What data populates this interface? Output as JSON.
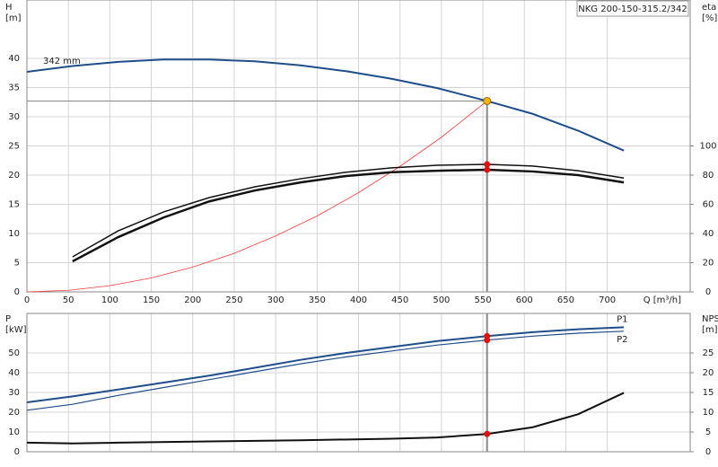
{
  "chart_data": [
    {
      "type": "line",
      "title": "NKG 200-150-315.2/342",
      "y_label": [
        "H",
        "[m]"
      ],
      "y2_label": [
        "eta",
        "[%]"
      ],
      "x_label": "Q [m³/h]",
      "xlim": [
        0,
        800
      ],
      "xticks": [
        0,
        50,
        100,
        150,
        200,
        250,
        300,
        350,
        400,
        450,
        500,
        550,
        600,
        650,
        700
      ],
      "ylim": [
        0,
        50
      ],
      "yticks": [
        0,
        5,
        10,
        15,
        20,
        25,
        30,
        35,
        40
      ],
      "y2lim": [
        0,
        200
      ],
      "y2ticks": [
        0,
        20,
        40,
        60,
        80,
        100
      ],
      "grid": true,
      "duty_point": {
        "x": 555,
        "y": 32.7,
        "color": "#f5b400"
      },
      "series": [
        {
          "name": "342 mm",
          "color": "#1f4e8c",
          "width": 2,
          "x": [
            0,
            55,
            110,
            165,
            220,
            275,
            330,
            385,
            440,
            495,
            555,
            610,
            665,
            720
          ],
          "values": [
            37.7,
            38.7,
            39.4,
            39.8,
            39.8,
            39.5,
            38.8,
            37.8,
            36.5,
            34.9,
            32.7,
            30.5,
            27.6,
            24.2
          ]
        },
        {
          "color": "#ff3b3b",
          "width": 0.8,
          "x": [
            0,
            50,
            100,
            150,
            200,
            250,
            300,
            350,
            400,
            450,
            500,
            555
          ],
          "values": [
            0,
            0.27,
            1.06,
            2.39,
            4.25,
            6.6,
            9.6,
            13.0,
            17.0,
            21.5,
            26.5,
            32.7
          ]
        },
        {
          "color": "#111111",
          "width": 1.5,
          "axis": "y2",
          "dot_color": "#e01010",
          "x": [
            55,
            110,
            165,
            220,
            275,
            330,
            385,
            440,
            495,
            555,
            610,
            665,
            720
          ],
          "values": [
            24,
            41.8,
            54.8,
            64.6,
            72,
            77.5,
            82,
            85,
            86.8,
            87.4,
            86.2,
            83,
            78
          ]
        },
        {
          "color": "#111111",
          "width": 2.5,
          "axis": "y2",
          "dot_color": "#e01010",
          "x": [
            55,
            110,
            165,
            220,
            275,
            330,
            385,
            440,
            495,
            555,
            610,
            665,
            720
          ],
          "values": [
            20.9,
            37.5,
            51,
            62,
            69.5,
            75,
            79.4,
            82,
            83,
            83.7,
            82.5,
            80,
            75
          ]
        }
      ]
    },
    {
      "type": "line",
      "y_label": [
        "P",
        "[kW]"
      ],
      "y2_label": [
        "NPSH",
        "[m]"
      ],
      "xlim": [
        0,
        800
      ],
      "xticks": [
        0,
        50,
        100,
        150,
        200,
        250,
        300,
        350,
        400,
        450,
        500,
        550,
        600,
        650,
        700
      ],
      "ylim": [
        0,
        70
      ],
      "yticks": [
        0,
        10,
        20,
        30,
        40,
        50
      ],
      "y2lim": [
        0,
        35
      ],
      "y2ticks": [
        0,
        5,
        10,
        15,
        20,
        25
      ],
      "grid": true,
      "series": [
        {
          "name": "P1",
          "color": "#1f4e8c",
          "width": 2,
          "dot_color": "#e01010",
          "x": [
            0,
            55,
            110,
            165,
            220,
            275,
            330,
            385,
            440,
            495,
            555,
            610,
            665,
            720
          ],
          "values": [
            25,
            28,
            31.5,
            35,
            38.5,
            42.5,
            46.5,
            50,
            53,
            56,
            58.5,
            60.5,
            62,
            63
          ]
        },
        {
          "name": "P2",
          "color": "#1f4e8c",
          "width": 1.2,
          "dot_color": "#e01010",
          "x": [
            0,
            55,
            110,
            165,
            220,
            275,
            330,
            385,
            440,
            495,
            555,
            610,
            665,
            720
          ],
          "values": [
            21,
            24,
            28.5,
            32.5,
            36.5,
            40.5,
            44.5,
            48,
            51,
            54,
            56.5,
            58.5,
            60,
            61
          ]
        },
        {
          "color": "#111111",
          "width": 2,
          "axis": "y2",
          "dot_color": "#e01010",
          "x": [
            0,
            55,
            110,
            220,
            330,
            440,
            495,
            555,
            610,
            665,
            720
          ],
          "values": [
            2.3,
            2.1,
            2.3,
            2.6,
            2.9,
            3.3,
            3.6,
            4.5,
            6.2,
            9.5,
            14.9
          ]
        }
      ]
    }
  ]
}
